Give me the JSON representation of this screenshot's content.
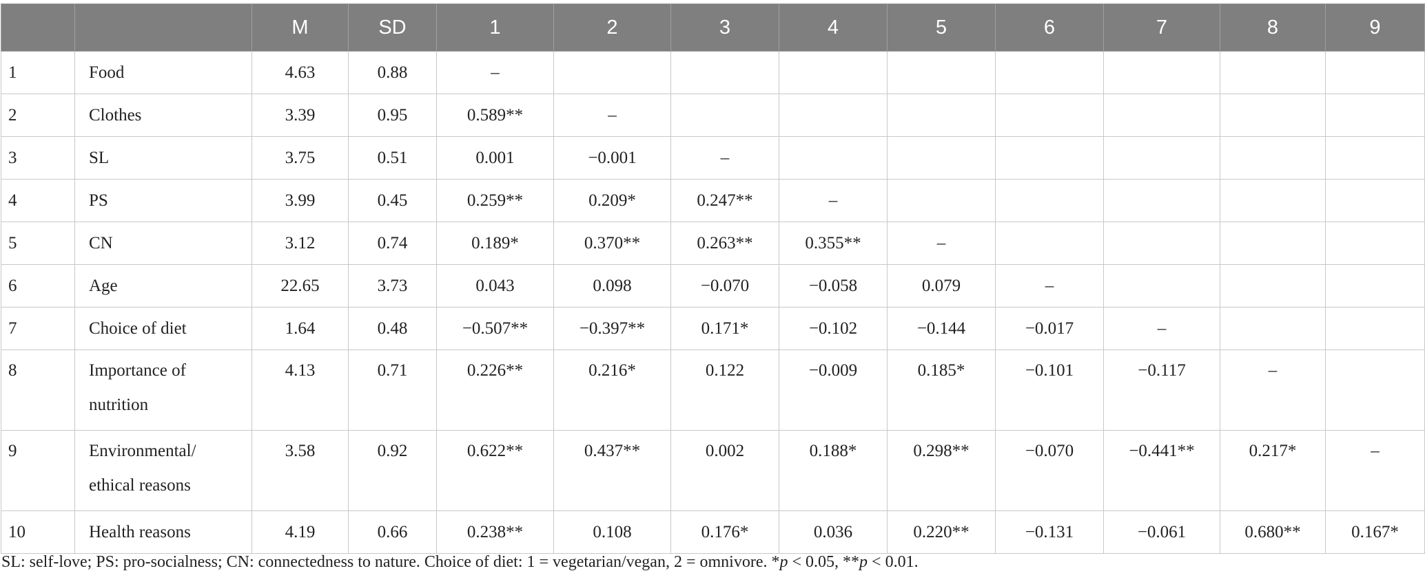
{
  "table": {
    "header": [
      "M",
      "SD",
      "1",
      "2",
      "3",
      "4",
      "5",
      "6",
      "7",
      "8",
      "9"
    ],
    "rows": [
      {
        "index": "1",
        "label": [
          "Food"
        ],
        "m": "4.63",
        "sd": "0.88",
        "r": [
          "–"
        ]
      },
      {
        "index": "2",
        "label": [
          "Clothes"
        ],
        "m": "3.39",
        "sd": "0.95",
        "r": [
          "0.589**",
          "–"
        ]
      },
      {
        "index": "3",
        "label": [
          "SL"
        ],
        "m": "3.75",
        "sd": "0.51",
        "r": [
          "0.001",
          "−0.001",
          "–"
        ]
      },
      {
        "index": "4",
        "label": [
          "PS"
        ],
        "m": "3.99",
        "sd": "0.45",
        "r": [
          "0.259**",
          "0.209*",
          "0.247**",
          "–"
        ]
      },
      {
        "index": "5",
        "label": [
          "CN"
        ],
        "m": "3.12",
        "sd": "0.74",
        "r": [
          "0.189*",
          "0.370**",
          "0.263**",
          "0.355**",
          "–"
        ]
      },
      {
        "index": "6",
        "label": [
          "Age"
        ],
        "m": "22.65",
        "sd": "3.73",
        "r": [
          "0.043",
          "0.098",
          "−0.070",
          "−0.058",
          "0.079",
          "–"
        ]
      },
      {
        "index": "7",
        "label": [
          "Choice of diet"
        ],
        "m": "1.64",
        "sd": "0.48",
        "r": [
          "−0.507**",
          "−0.397**",
          "0.171*",
          "−0.102",
          "−0.144",
          "−0.017",
          "–"
        ]
      },
      {
        "index": "8",
        "label": [
          "Importance of",
          "nutrition"
        ],
        "m": "4.13",
        "sd": "0.71",
        "r": [
          "0.226**",
          "0.216*",
          "0.122",
          "−0.009",
          "0.185*",
          "−0.101",
          "−0.117",
          "–"
        ]
      },
      {
        "index": "9",
        "label": [
          "Environmental/",
          "ethical reasons"
        ],
        "m": "3.58",
        "sd": "0.92",
        "r": [
          "0.622**",
          "0.437**",
          "0.002",
          "0.188*",
          "0.298**",
          "−0.070",
          "−0.441**",
          "0.217*",
          "–"
        ]
      },
      {
        "index": "10",
        "label": [
          "Health reasons"
        ],
        "m": "4.19",
        "sd": "0.66",
        "r": [
          "0.238**",
          "0.108",
          "0.176*",
          "0.036",
          "0.220**",
          "−0.131",
          "−0.061",
          "0.680**",
          "0.167*"
        ]
      }
    ]
  },
  "footnote": [
    "SL: self-love; PS: pro-socialness; CN: connectedness to nature. Choice of diet: 1 = vegetarian/vegan, 2 = omnivore. *",
    "p",
    " < 0.05, **",
    "p",
    " < 0.01."
  ]
}
